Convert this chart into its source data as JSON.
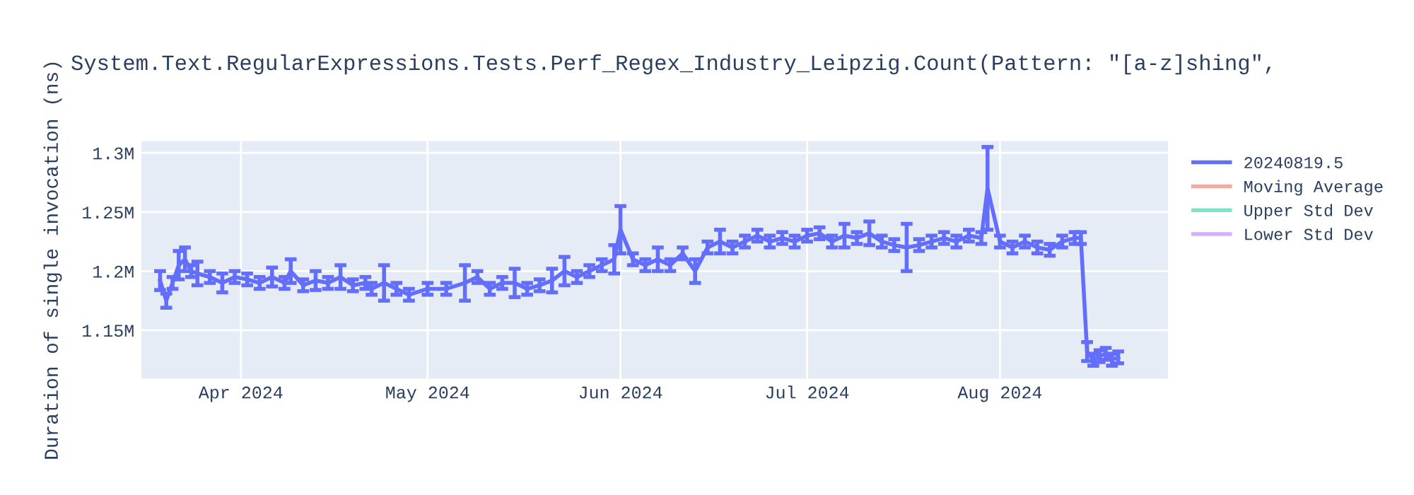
{
  "chart_data": {
    "type": "line",
    "title": "System.Text.RegularExpressions.Tests.Perf_Regex_Industry_Leipzig.Count(Pattern: \"[a-z]shing\",",
    "ylabel": "Duration of single invocation (ns)",
    "x": [
      "2024-03-19",
      "2024-03-20",
      "2024-03-21",
      "2024-03-22",
      "2024-03-23",
      "2024-03-24",
      "2024-03-25",
      "2024-03-27",
      "2024-03-29",
      "2024-03-31",
      "2024-04-02",
      "2024-04-04",
      "2024-04-06",
      "2024-04-08",
      "2024-04-09",
      "2024-04-11",
      "2024-04-13",
      "2024-04-15",
      "2024-04-17",
      "2024-04-19",
      "2024-04-21",
      "2024-04-22",
      "2024-04-24",
      "2024-04-26",
      "2024-04-28",
      "2024-05-01",
      "2024-05-04",
      "2024-05-07",
      "2024-05-09",
      "2024-05-11",
      "2024-05-13",
      "2024-05-15",
      "2024-05-17",
      "2024-05-19",
      "2024-05-21",
      "2024-05-23",
      "2024-05-25",
      "2024-05-27",
      "2024-05-29",
      "2024-05-31",
      "2024-06-01",
      "2024-06-03",
      "2024-06-05",
      "2024-06-07",
      "2024-06-09",
      "2024-06-11",
      "2024-06-13",
      "2024-06-15",
      "2024-06-17",
      "2024-06-19",
      "2024-06-21",
      "2024-06-23",
      "2024-06-25",
      "2024-06-27",
      "2024-06-29",
      "2024-07-01",
      "2024-07-03",
      "2024-07-05",
      "2024-07-07",
      "2024-07-09",
      "2024-07-11",
      "2024-07-13",
      "2024-07-15",
      "2024-07-17",
      "2024-07-19",
      "2024-07-21",
      "2024-07-23",
      "2024-07-25",
      "2024-07-27",
      "2024-07-29",
      "2024-07-30",
      "2024-08-01",
      "2024-08-03",
      "2024-08-05",
      "2024-08-07",
      "2024-08-09",
      "2024-08-11",
      "2024-08-13",
      "2024-08-14",
      "2024-08-15",
      "2024-08-16",
      "2024-08-17",
      "2024-08-18",
      "2024-08-19",
      "2024-08-20"
    ],
    "series": [
      {
        "name": "20240819.5",
        "color": "#636efa",
        "values": [
          1192000,
          1175000,
          1190000,
          1205000,
          1210000,
          1200000,
          1198000,
          1195000,
          1190000,
          1195000,
          1193000,
          1190000,
          1195000,
          1190000,
          1200000,
          1188000,
          1192000,
          1190000,
          1195000,
          1188000,
          1190000,
          1185000,
          1190000,
          1185000,
          1180000,
          1185000,
          1185000,
          1190000,
          1195000,
          1185000,
          1190000,
          1190000,
          1185000,
          1188000,
          1192000,
          1200000,
          1195000,
          1200000,
          1205000,
          1210000,
          1235000,
          1210000,
          1205000,
          1210000,
          1205000,
          1215000,
          1200000,
          1220000,
          1225000,
          1220000,
          1225000,
          1230000,
          1225000,
          1228000,
          1225000,
          1230000,
          1232000,
          1225000,
          1230000,
          1228000,
          1232000,
          1225000,
          1222000,
          1220000,
          1222000,
          1225000,
          1228000,
          1225000,
          1230000,
          1228000,
          1270000,
          1225000,
          1220000,
          1225000,
          1220000,
          1218000,
          1225000,
          1228000,
          1228000,
          1132000,
          1125000,
          1128000,
          1130000,
          1125000,
          1127000
        ],
        "errors": [
          8000,
          6000,
          5000,
          12000,
          10000,
          5000,
          10000,
          5000,
          8000,
          5000,
          5000,
          5000,
          8000,
          5000,
          10000,
          5000,
          8000,
          5000,
          10000,
          5000,
          5000,
          5000,
          15000,
          5000,
          5000,
          5000,
          5000,
          15000,
          5000,
          5000,
          5000,
          12000,
          5000,
          5000,
          10000,
          12000,
          5000,
          5000,
          5000,
          12000,
          20000,
          5000,
          5000,
          10000,
          5000,
          5000,
          10000,
          5000,
          10000,
          5000,
          5000,
          5000,
          5000,
          5000,
          5000,
          5000,
          5000,
          5000,
          10000,
          5000,
          10000,
          5000,
          5000,
          20000,
          5000,
          5000,
          5000,
          5000,
          5000,
          5000,
          35000,
          5000,
          5000,
          5000,
          5000,
          5000,
          5000,
          5000,
          5000,
          8000,
          5000,
          5000,
          5000,
          5000,
          5000
        ]
      },
      {
        "name": "Moving Average",
        "color": "#f5aa9d",
        "values": [
          null,
          null,
          null,
          null,
          null,
          null,
          null,
          null,
          null,
          null,
          null,
          null,
          null,
          null,
          null,
          null,
          null,
          null,
          null,
          null,
          null,
          null,
          null,
          null,
          null,
          null,
          null,
          null,
          null,
          null,
          null,
          null,
          null,
          null,
          null,
          null,
          null,
          null,
          null,
          null,
          null,
          null,
          null,
          null,
          null,
          null,
          null,
          null,
          null,
          null,
          null,
          null,
          null,
          null,
          null,
          null,
          null,
          null,
          null,
          null,
          null,
          null,
          null,
          null,
          null,
          null,
          null,
          null,
          null,
          null,
          null,
          null,
          null,
          null,
          null,
          null,
          null,
          null,
          null,
          null,
          null,
          null,
          null,
          null,
          null
        ]
      },
      {
        "name": "Upper Std Dev",
        "color": "#7fe5ca",
        "values": [
          null,
          null,
          null,
          null,
          null,
          null,
          null,
          null,
          null,
          null,
          null,
          null,
          null,
          null,
          null,
          null,
          null,
          null,
          null,
          null,
          null,
          null,
          null,
          null,
          null,
          null,
          null,
          null,
          null,
          null,
          null,
          null,
          null,
          null,
          null,
          null,
          null,
          null,
          null,
          null,
          null,
          null,
          null,
          null,
          null,
          null,
          null,
          null,
          null,
          null,
          null,
          null,
          null,
          null,
          null,
          null,
          null,
          null,
          null,
          null,
          null,
          null,
          null,
          null,
          null,
          null,
          null,
          null,
          null,
          null,
          null,
          null,
          null,
          null,
          null,
          null,
          null,
          null,
          null,
          null,
          null,
          null,
          null,
          null,
          null
        ]
      },
      {
        "name": "Lower Std Dev",
        "color": "#d5b1fc",
        "values": [
          null,
          null,
          null,
          null,
          null,
          null,
          null,
          null,
          null,
          null,
          null,
          null,
          null,
          null,
          null,
          null,
          null,
          null,
          null,
          null,
          null,
          null,
          null,
          null,
          null,
          null,
          null,
          null,
          null,
          null,
          null,
          null,
          null,
          null,
          null,
          null,
          null,
          null,
          null,
          null,
          null,
          null,
          null,
          null,
          null,
          null,
          null,
          null,
          null,
          null,
          null,
          null,
          null,
          null,
          null,
          null,
          null,
          null,
          null,
          null,
          null,
          null,
          null,
          null,
          null,
          null,
          null,
          null,
          null,
          null,
          null,
          null,
          null,
          null,
          null,
          null,
          null,
          null,
          null,
          null,
          null,
          null,
          null,
          null,
          null
        ]
      }
    ],
    "xlim": [
      "2024-03-16",
      "2024-08-28"
    ],
    "xticks": [
      {
        "value": "2024-04-01",
        "label": "Apr 2024"
      },
      {
        "value": "2024-05-01",
        "label": "May 2024"
      },
      {
        "value": "2024-06-01",
        "label": "Jun 2024"
      },
      {
        "value": "2024-07-01",
        "label": "Jul 2024"
      },
      {
        "value": "2024-08-01",
        "label": "Aug 2024"
      }
    ],
    "ylim": [
      1109000,
      1310000
    ],
    "yticks": [
      {
        "value": 1150000,
        "label": "1.15M"
      },
      {
        "value": 1200000,
        "label": "1.2M"
      },
      {
        "value": 1250000,
        "label": "1.25M"
      },
      {
        "value": 1300000,
        "label": "1.3M"
      }
    ],
    "grid": true,
    "legend": "top right",
    "marker": "none",
    "line_style": "solid"
  }
}
